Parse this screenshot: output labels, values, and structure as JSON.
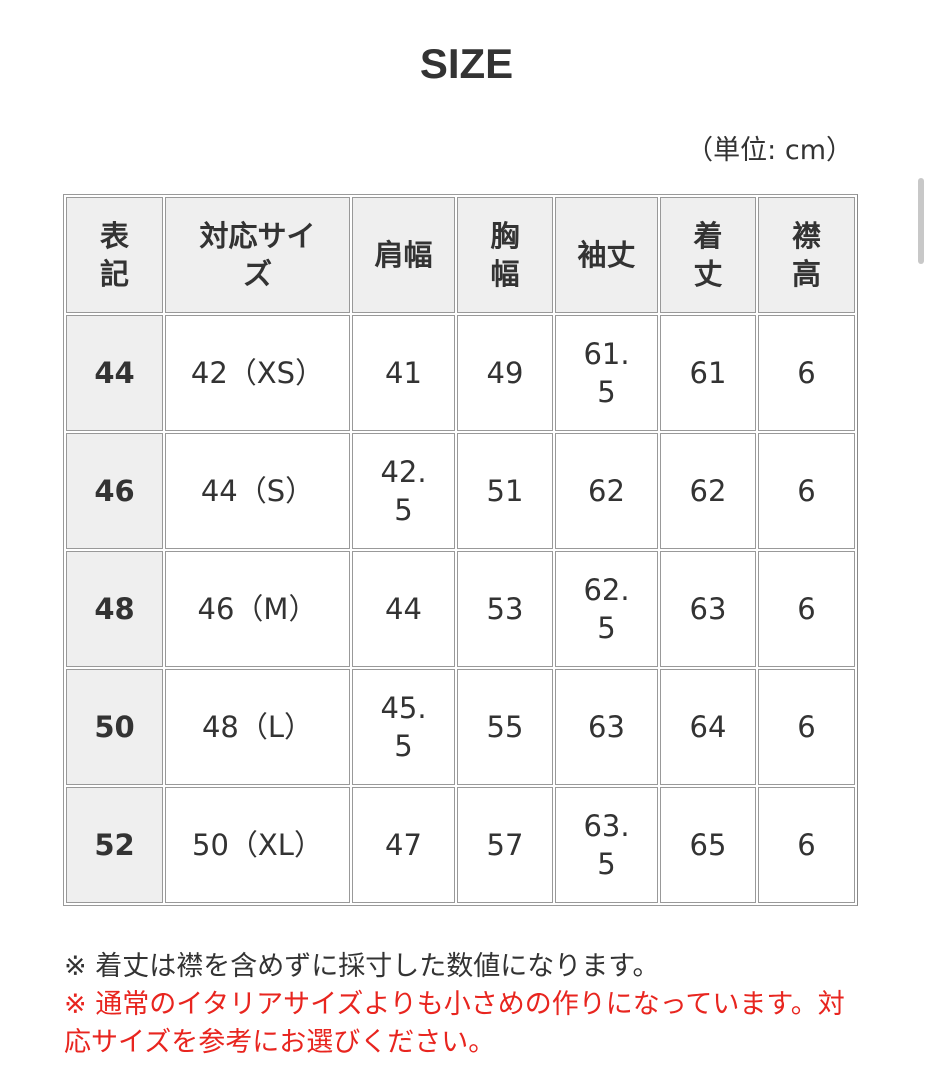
{
  "title": "SIZE",
  "unit": "（単位: cm）",
  "headers": [
    "表記",
    "対応サイズ",
    "肩幅",
    "胸幅",
    "袖丈",
    "着丈",
    "襟高"
  ],
  "rows": [
    [
      "44",
      "42（XS）",
      "41",
      "49",
      "61.5",
      "61",
      "6"
    ],
    [
      "46",
      "44（S）",
      "42.5",
      "51",
      "62",
      "62",
      "6"
    ],
    [
      "48",
      "46（M）",
      "44",
      "53",
      "62.5",
      "63",
      "6"
    ],
    [
      "50",
      "48（L）",
      "45.5",
      "55",
      "63",
      "64",
      "6"
    ],
    [
      "52",
      "50（XL）",
      "47",
      "57",
      "63.5",
      "65",
      "6"
    ]
  ],
  "notes": {
    "note1": "※ 着丈は襟を含めずに採寸した数値になります。",
    "note2": "※ 通常のイタリアサイズよりも小さめの作りになっています。対応サイズを参考にお選びください。"
  },
  "colors": {
    "warning": "#e8251f",
    "header_bg": "#efefef"
  }
}
